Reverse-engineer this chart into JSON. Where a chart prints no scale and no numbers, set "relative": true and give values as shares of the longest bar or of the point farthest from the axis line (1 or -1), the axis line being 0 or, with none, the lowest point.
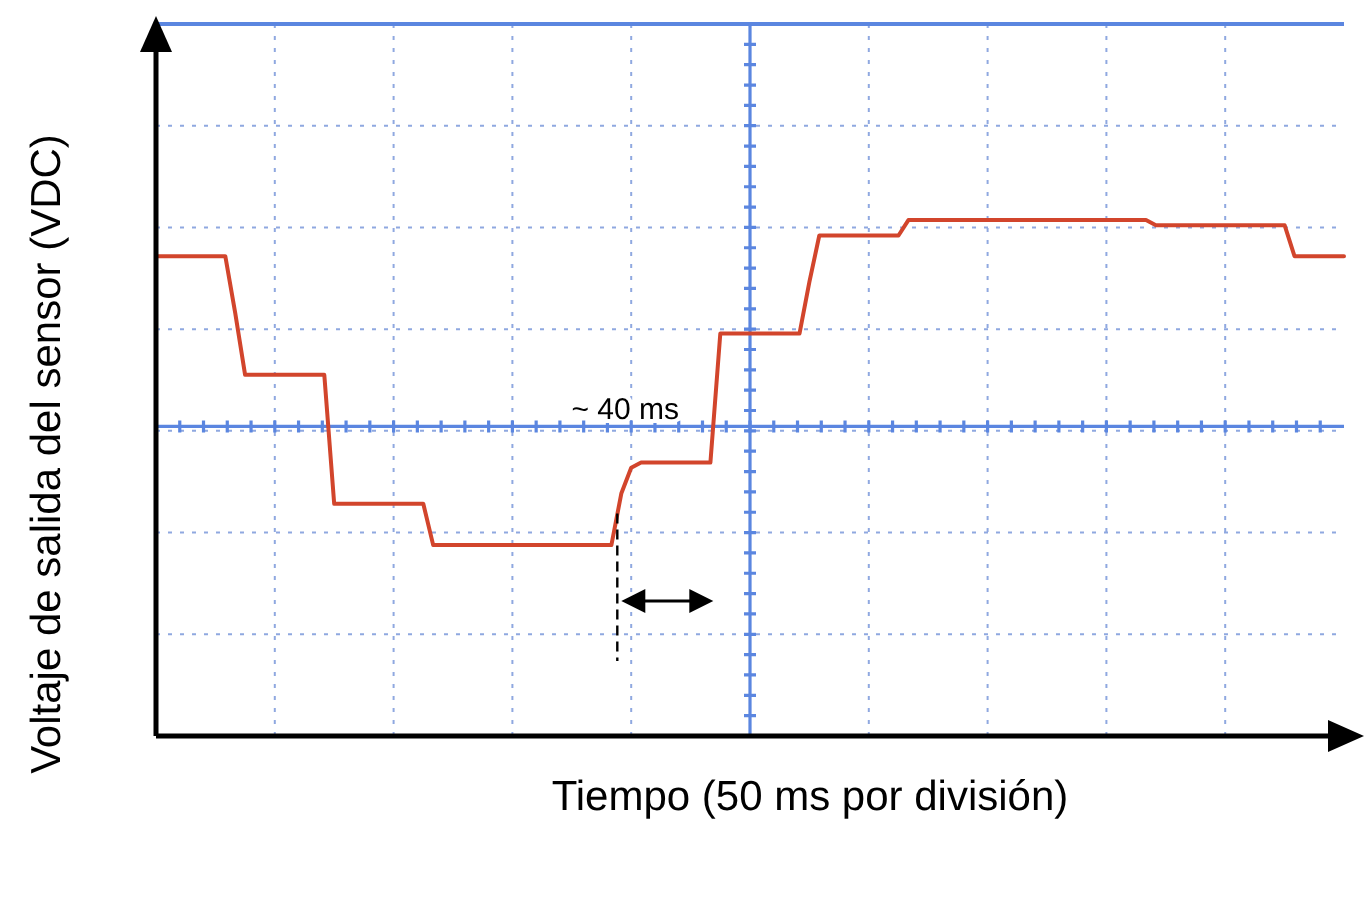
{
  "chart_data": {
    "type": "line",
    "xlabel": "Tiempo (50 ms por división)",
    "ylabel": "Voltaje de salida del sensor (VDC)",
    "relative": true,
    "grid": true,
    "marker": "none",
    "line_style": "solid",
    "categories": [
      null,
      null,
      null,
      null,
      null,
      null,
      null,
      null,
      null,
      null,
      null,
      null,
      null,
      null,
      null,
      null,
      null,
      null,
      null,
      null,
      null,
      null,
      null,
      null,
      null,
      null,
      null,
      null,
      null,
      null,
      null,
      null,
      null,
      null,
      null,
      null,
      null,
      null,
      null,
      null,
      null,
      null,
      null,
      null,
      null,
      null,
      null,
      null,
      null,
      null,
      null,
      null,
      null,
      null,
      null,
      null,
      null,
      null,
      null,
      null,
      null,
      null,
      null,
      null,
      null,
      null,
      null,
      null,
      null,
      null,
      null,
      null,
      null,
      null,
      null,
      null,
      null,
      null,
      null,
      null,
      null,
      null,
      null,
      null,
      null,
      null,
      null,
      null,
      null,
      null,
      null,
      null,
      null,
      null,
      null,
      null,
      null,
      null,
      null,
      null,
      null,
      null,
      null,
      null,
      null,
      null,
      null,
      null,
      null,
      null,
      null,
      null,
      null,
      null,
      null,
      null,
      null,
      null,
      null,
      null,
      null
    ],
    "series": [
      {
        "color": "#d2452c",
        "values": [
          0.93,
          0.93,
          0.93,
          0.93,
          0.93,
          0.93,
          0.93,
          0.93,
          0.82,
          0.7,
          0.7,
          0.7,
          0.7,
          0.7,
          0.7,
          0.7,
          0.7,
          0.7,
          0.45,
          0.45,
          0.45,
          0.45,
          0.45,
          0.45,
          0.45,
          0.45,
          0.45,
          0.45,
          0.37,
          0.37,
          0.37,
          0.37,
          0.37,
          0.37,
          0.37,
          0.37,
          0.37,
          0.37,
          0.37,
          0.37,
          0.37,
          0.37,
          0.37,
          0.37,
          0.37,
          0.37,
          0.37,
          0.47,
          0.52,
          0.53,
          0.53,
          0.53,
          0.53,
          0.53,
          0.53,
          0.53,
          0.53,
          0.78,
          0.78,
          0.78,
          0.78,
          0.78,
          0.78,
          0.78,
          0.78,
          0.78,
          0.88,
          0.97,
          0.97,
          0.97,
          0.97,
          0.97,
          0.97,
          0.97,
          0.97,
          0.97,
          1,
          1,
          1,
          1,
          1,
          1,
          1,
          1,
          1,
          1,
          1,
          1,
          1,
          1,
          1,
          1,
          1,
          1,
          1,
          1,
          1,
          1,
          1,
          1,
          1,
          0.99,
          0.99,
          0.99,
          0.99,
          0.99,
          0.99,
          0.99,
          0.99,
          0.99,
          0.99,
          0.99,
          0.99,
          0.99,
          0.99,
          0.93,
          0.93,
          0.93,
          0.93,
          0.93,
          0.93
        ]
      }
    ],
    "ref_lines": [
      {
        "axis": "y",
        "value": 0.6,
        "color": "#5b86e0"
      }
    ],
    "annotations": [
      "~ 40 ms"
    ]
  }
}
